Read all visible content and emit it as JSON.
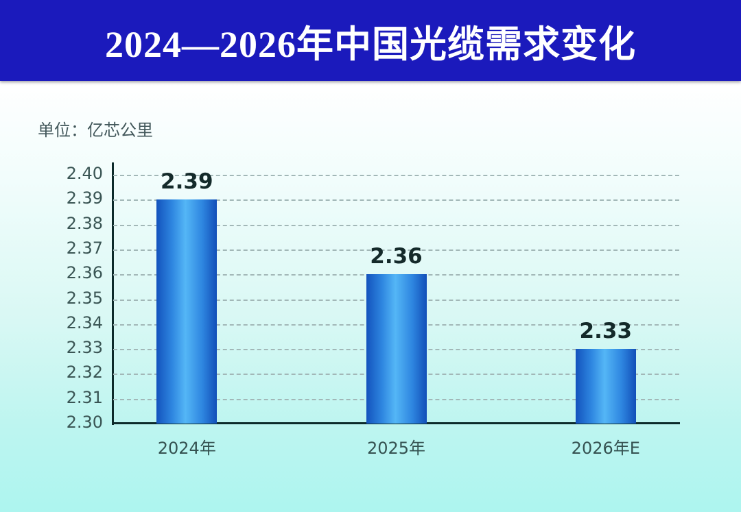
{
  "header": {
    "title": "2024—2026年中国光缆需求变化"
  },
  "chart": {
    "unit_label": "单位：亿芯公里"
  },
  "chart_data": {
    "type": "bar",
    "title": "2024—2026年中国光缆需求变化",
    "categories": [
      "2024年",
      "2025年",
      "2026年E"
    ],
    "values": [
      2.39,
      2.36,
      2.33
    ],
    "data_labels": [
      "2.39",
      "2.36",
      "2.33"
    ],
    "xlabel": "",
    "ylabel": "单位：亿芯公里",
    "ylim": [
      2.3,
      2.4
    ],
    "ytick_step": 0.01,
    "yticks": [
      "2.40",
      "2.39",
      "2.38",
      "2.37",
      "2.36",
      "2.35",
      "2.34",
      "2.33",
      "2.32",
      "2.31",
      "2.30"
    ],
    "grid": true,
    "grid_style": "dashed",
    "legend": false,
    "colors": {
      "banner_background": "#1b1abc",
      "title_text": "#ffffff",
      "background_top": "#ffffff",
      "background_bottom": "#adf5ef",
      "bar_edge": "#1353bd",
      "bar_center": "#54b6f6",
      "axis_line": "#0c2a2a",
      "gridline": "#a2b7b7",
      "tick_text": "#3a5554",
      "value_text": "#142a2a"
    }
  }
}
